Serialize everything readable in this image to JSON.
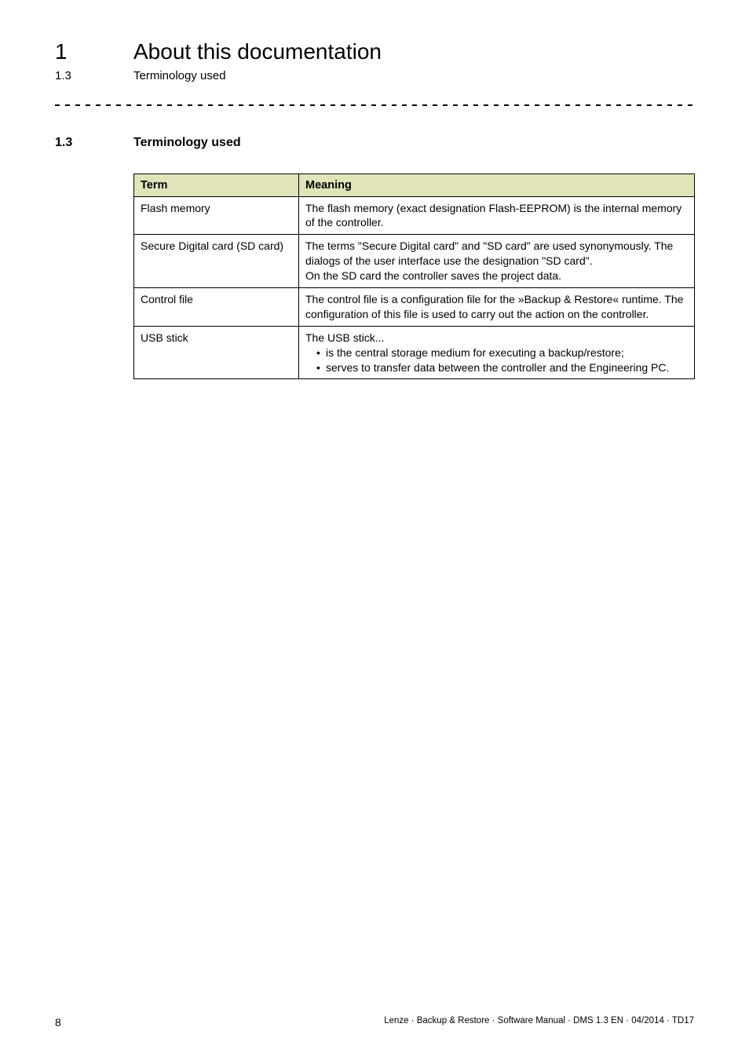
{
  "header": {
    "chapter_num": "1",
    "chapter_title": "About this documentation",
    "sub_num": "1.3",
    "sub_title": "Terminology used"
  },
  "section": {
    "num": "1.3",
    "title": "Terminology used"
  },
  "table": {
    "header_bg": "#e1e4b9",
    "columns": [
      "Term",
      "Meaning"
    ],
    "rows": [
      {
        "term": "Flash memory",
        "meaning_lines": [
          "The flash memory (exact designation Flash-EEPROM) is the internal memory of the controller."
        ]
      },
      {
        "term": "Secure Digital card (SD card)",
        "meaning_lines": [
          "The terms \"Secure Digital card\" and \"SD card\" are used synonymously. The dialogs of the user interface use the designation \"SD card\".",
          "On the SD card the controller saves the project data."
        ]
      },
      {
        "term": "Control file",
        "meaning_lines": [
          "The control file is a configuration file for the »Backup & Restore« runtime. The configuration of this file is used to carry out the action on the controller."
        ]
      },
      {
        "term": "USB stick",
        "meaning_intro": "The USB stick...",
        "meaning_bullets": [
          "is the central storage medium for executing a backup/restore;",
          "serves to transfer data between the controller and the Engineering PC."
        ]
      }
    ]
  },
  "footer": {
    "page_num": "8",
    "text": "Lenze · Backup & Restore · Software Manual · DMS 1.3 EN · 04/2014 · TD17"
  }
}
